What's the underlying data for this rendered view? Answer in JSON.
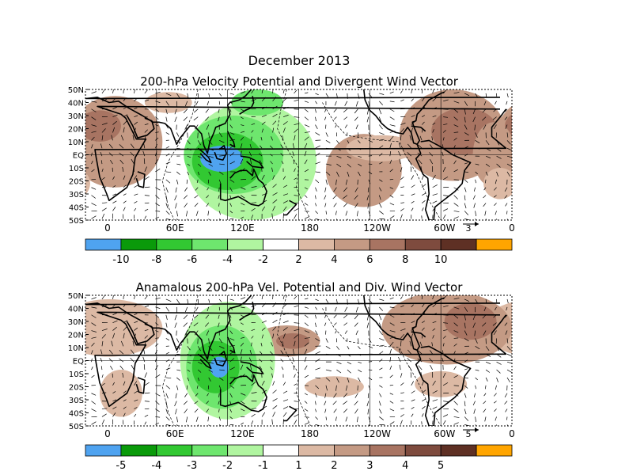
{
  "figure": {
    "title": "December 2013",
    "colors": {
      "blue": "#4fa3f0",
      "dkgreen": "#0a9a0a",
      "green": "#32c832",
      "ltgreen": "#6ee66e",
      "pale": "#b0f5a0",
      "white": "#ffffff",
      "tan1": "#dcb9a4",
      "tan2": "#c49a84",
      "brn1": "#a87462",
      "brn2": "#7e4b3e",
      "dkbrn": "#5e3024",
      "orange": "#ffa500",
      "coast": "#000000",
      "grid": "#000000"
    }
  },
  "chart_data": [
    {
      "type": "heatmap",
      "title": "200-hPa Velocity Potential and Divergent Wind Vector",
      "lon_labels": [
        "0",
        "60E",
        "120E",
        "180",
        "120W",
        "60W",
        "0"
      ],
      "lat_labels": [
        "50N",
        "40N",
        "30N",
        "20N",
        "10N",
        "EQ",
        "10S",
        "20S",
        "30S",
        "40S",
        "50S"
      ],
      "lon_range": [
        0,
        360
      ],
      "lat_range": [
        -50,
        50
      ],
      "colorbar": {
        "labels": [
          "-10",
          "-8",
          "-6",
          "-4",
          "-2",
          "2",
          "4",
          "6",
          "8",
          "10"
        ],
        "colors": [
          "blue",
          "dkgreen",
          "green",
          "ltgreen",
          "pale",
          "white",
          "tan1",
          "tan2",
          "brn1",
          "brn2",
          "dkbrn",
          "orange"
        ]
      },
      "reference_vector": "3",
      "blobs": [
        {
          "lon": 25,
          "lat": 10,
          "rx": 40,
          "ry": 35,
          "level": "tan2"
        },
        {
          "lon": 12,
          "lat": 22,
          "rx": 18,
          "ry": 12,
          "level": "brn1"
        },
        {
          "lon": 70,
          "lat": 40,
          "rx": 20,
          "ry": 8,
          "level": "tan1"
        },
        {
          "lon": 235,
          "lat": -12,
          "rx": 32,
          "ry": 28,
          "level": "tan2"
        },
        {
          "lon": 250,
          "lat": 5,
          "rx": 30,
          "ry": 10,
          "level": "tan1"
        },
        {
          "lon": 310,
          "lat": 15,
          "rx": 45,
          "ry": 35,
          "level": "tan2"
        },
        {
          "lon": 320,
          "lat": 18,
          "rx": 28,
          "ry": 18,
          "level": "brn1"
        },
        {
          "lon": 345,
          "lat": 0,
          "rx": 18,
          "ry": 25,
          "level": "tan2"
        },
        {
          "lon": 350,
          "lat": -22,
          "rx": 14,
          "ry": 12,
          "level": "tan1"
        },
        {
          "lon": 140,
          "lat": -5,
          "rx": 55,
          "ry": 45,
          "level": "pale"
        },
        {
          "lon": 125,
          "lat": 0,
          "rx": 42,
          "ry": 30,
          "level": "ltgreen"
        },
        {
          "lon": 120,
          "lat": -5,
          "rx": 30,
          "ry": 22,
          "level": "green"
        },
        {
          "lon": 115,
          "lat": -3,
          "rx": 18,
          "ry": 10,
          "level": "blue"
        },
        {
          "lon": 145,
          "lat": 40,
          "rx": 22,
          "ry": 10,
          "level": "ltgreen"
        }
      ]
    },
    {
      "type": "heatmap",
      "title": "Anamalous 200-hPa Vel. Potential and Div. Wind Vector",
      "lon_labels": [
        "0",
        "60E",
        "120E",
        "180",
        "120W",
        "60W",
        "0"
      ],
      "lat_labels": [
        "50N",
        "40N",
        "30N",
        "20N",
        "10N",
        "EQ",
        "10S",
        "20S",
        "30S",
        "40S",
        "50S"
      ],
      "lon_range": [
        0,
        360
      ],
      "lat_range": [
        -50,
        50
      ],
      "colorbar": {
        "labels": [
          "-5",
          "-4",
          "-3",
          "-2",
          "-1",
          "1",
          "2",
          "3",
          "4",
          "5"
        ],
        "colors": [
          "blue",
          "dkgreen",
          "green",
          "ltgreen",
          "pale",
          "white",
          "tan1",
          "tan2",
          "brn1",
          "brn2",
          "dkbrn",
          "orange"
        ]
      },
      "reference_vector": "5",
      "blobs": [
        {
          "lon": 20,
          "lat": 25,
          "rx": 45,
          "ry": 22,
          "level": "tan1"
        },
        {
          "lon": 30,
          "lat": -25,
          "rx": 18,
          "ry": 18,
          "level": "tan1"
        },
        {
          "lon": 170,
          "lat": 15,
          "rx": 28,
          "ry": 12,
          "level": "tan2"
        },
        {
          "lon": 175,
          "lat": 15,
          "rx": 14,
          "ry": 6,
          "level": "brn1"
        },
        {
          "lon": 210,
          "lat": -20,
          "rx": 25,
          "ry": 8,
          "level": "tan1"
        },
        {
          "lon": 305,
          "lat": 25,
          "rx": 55,
          "ry": 28,
          "level": "tan2"
        },
        {
          "lon": 325,
          "lat": 30,
          "rx": 22,
          "ry": 14,
          "level": "brn1"
        },
        {
          "lon": 300,
          "lat": -18,
          "rx": 22,
          "ry": 10,
          "level": "tan1"
        },
        {
          "lon": 120,
          "lat": 0,
          "rx": 40,
          "ry": 45,
          "level": "pale"
        },
        {
          "lon": 115,
          "lat": -5,
          "rx": 30,
          "ry": 32,
          "level": "ltgreen"
        },
        {
          "lon": 110,
          "lat": -5,
          "rx": 20,
          "ry": 20,
          "level": "green"
        },
        {
          "lon": 113,
          "lat": -5,
          "rx": 8,
          "ry": 8,
          "level": "blue"
        }
      ]
    }
  ]
}
